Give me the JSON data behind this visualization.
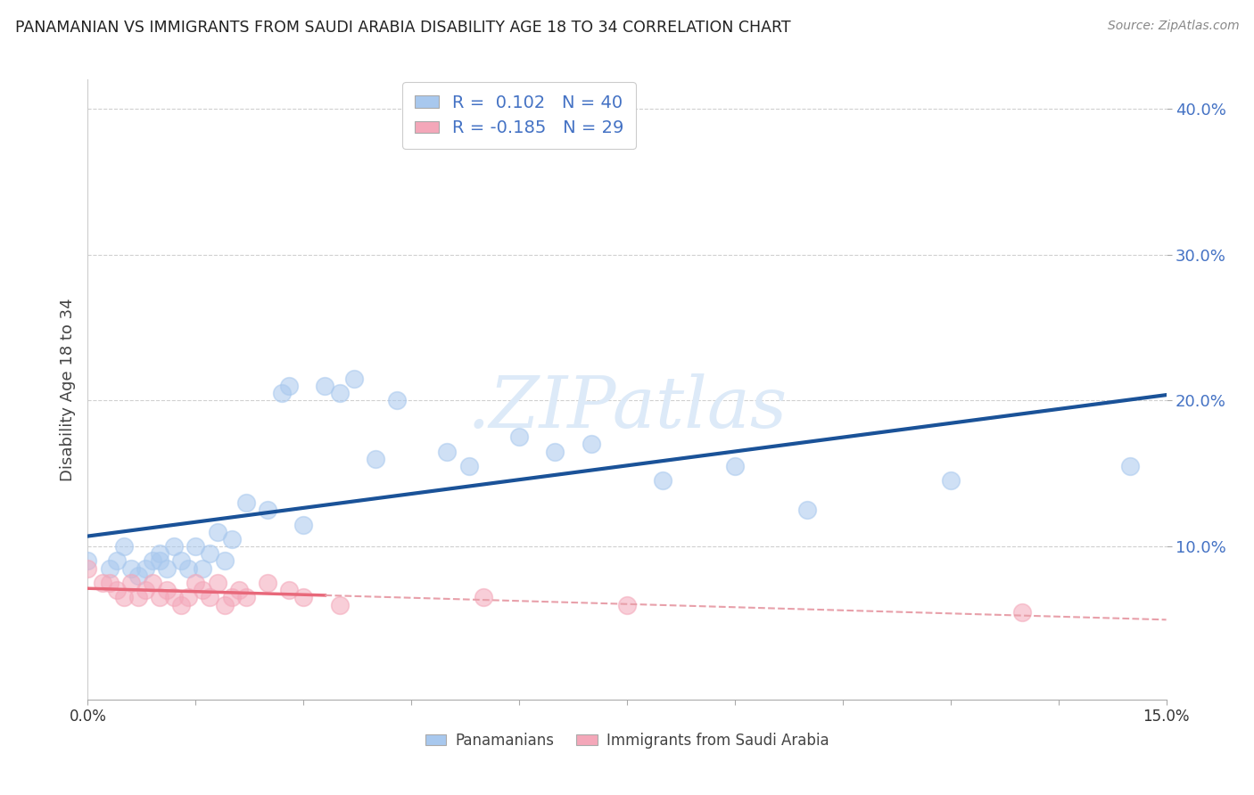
{
  "title": "PANAMANIAN VS IMMIGRANTS FROM SAUDI ARABIA DISABILITY AGE 18 TO 34 CORRELATION CHART",
  "source": "Source: ZipAtlas.com",
  "ylabel": "Disability Age 18 to 34",
  "xlim": [
    0.0,
    0.15
  ],
  "ylim": [
    -0.005,
    0.42
  ],
  "R_pana": 0.102,
  "N_pana": 40,
  "R_saudi": -0.185,
  "N_saudi": 29,
  "blue_scatter_color": "#a8c8ee",
  "pink_scatter_color": "#f4a7b9",
  "blue_line_color": "#1a5298",
  "pink_solid_color": "#e8687a",
  "pink_dash_color": "#e8a0aa",
  "grid_color": "#d0d0d0",
  "background_color": "#ffffff",
  "ytick_color": "#4472c4",
  "pana_x": [
    0.0,
    0.003,
    0.004,
    0.005,
    0.006,
    0.007,
    0.008,
    0.009,
    0.01,
    0.01,
    0.011,
    0.012,
    0.013,
    0.014,
    0.015,
    0.016,
    0.017,
    0.018,
    0.019,
    0.02,
    0.022,
    0.025,
    0.027,
    0.028,
    0.03,
    0.033,
    0.035,
    0.037,
    0.04,
    0.043,
    0.05,
    0.053,
    0.06,
    0.065,
    0.07,
    0.08,
    0.09,
    0.1,
    0.12,
    0.145
  ],
  "pana_y": [
    0.09,
    0.085,
    0.09,
    0.1,
    0.085,
    0.08,
    0.085,
    0.09,
    0.09,
    0.095,
    0.085,
    0.1,
    0.09,
    0.085,
    0.1,
    0.085,
    0.095,
    0.11,
    0.09,
    0.105,
    0.13,
    0.125,
    0.205,
    0.21,
    0.115,
    0.21,
    0.205,
    0.215,
    0.16,
    0.2,
    0.165,
    0.155,
    0.175,
    0.165,
    0.17,
    0.145,
    0.155,
    0.125,
    0.145,
    0.155
  ],
  "saudi_x": [
    0.0,
    0.002,
    0.003,
    0.004,
    0.005,
    0.006,
    0.007,
    0.008,
    0.009,
    0.01,
    0.011,
    0.012,
    0.013,
    0.014,
    0.015,
    0.016,
    0.017,
    0.018,
    0.019,
    0.02,
    0.021,
    0.022,
    0.025,
    0.028,
    0.03,
    0.035,
    0.055,
    0.075,
    0.13
  ],
  "saudi_y": [
    0.085,
    0.075,
    0.075,
    0.07,
    0.065,
    0.075,
    0.065,
    0.07,
    0.075,
    0.065,
    0.07,
    0.065,
    0.06,
    0.065,
    0.075,
    0.07,
    0.065,
    0.075,
    0.06,
    0.065,
    0.07,
    0.065,
    0.075,
    0.07,
    0.065,
    0.06,
    0.065,
    0.06,
    0.055
  ]
}
